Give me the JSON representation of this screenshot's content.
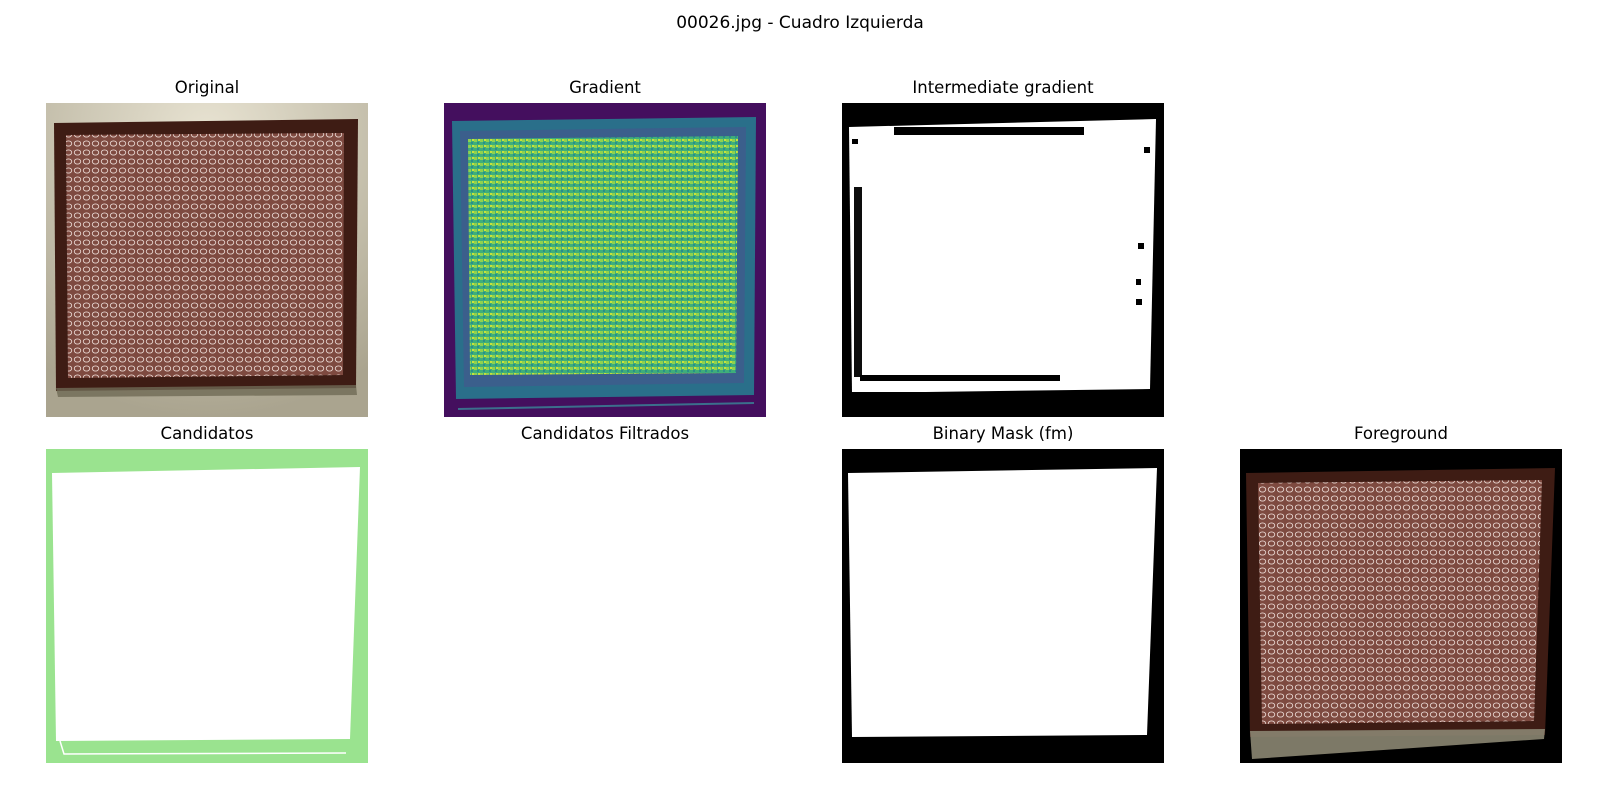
{
  "figure": {
    "title": "00026.jpg - Cuadro Izquierda"
  },
  "panels": {
    "original": {
      "title": "Original"
    },
    "gradient": {
      "title": "Gradient"
    },
    "intermediate": {
      "title": "Intermediate gradient"
    },
    "candidatos": {
      "title": "Candidatos"
    },
    "filtrados": {
      "title": "Candidatos Filtrados"
    },
    "binary_mask": {
      "title": "Binary Mask (fm)"
    },
    "foreground": {
      "title": "Foreground"
    }
  },
  "colors": {
    "painting_border": "#4a2218",
    "painting_canvas": "#8b5a4f",
    "wall": "#c8c1ac",
    "gradient_bg": "#440f5e",
    "gradient_fill": "#55c270",
    "gradient_edge": "#2a7f8e",
    "candidate_fill": "#9ae38f",
    "mask_black": "#000000",
    "mask_white": "#ffffff"
  }
}
